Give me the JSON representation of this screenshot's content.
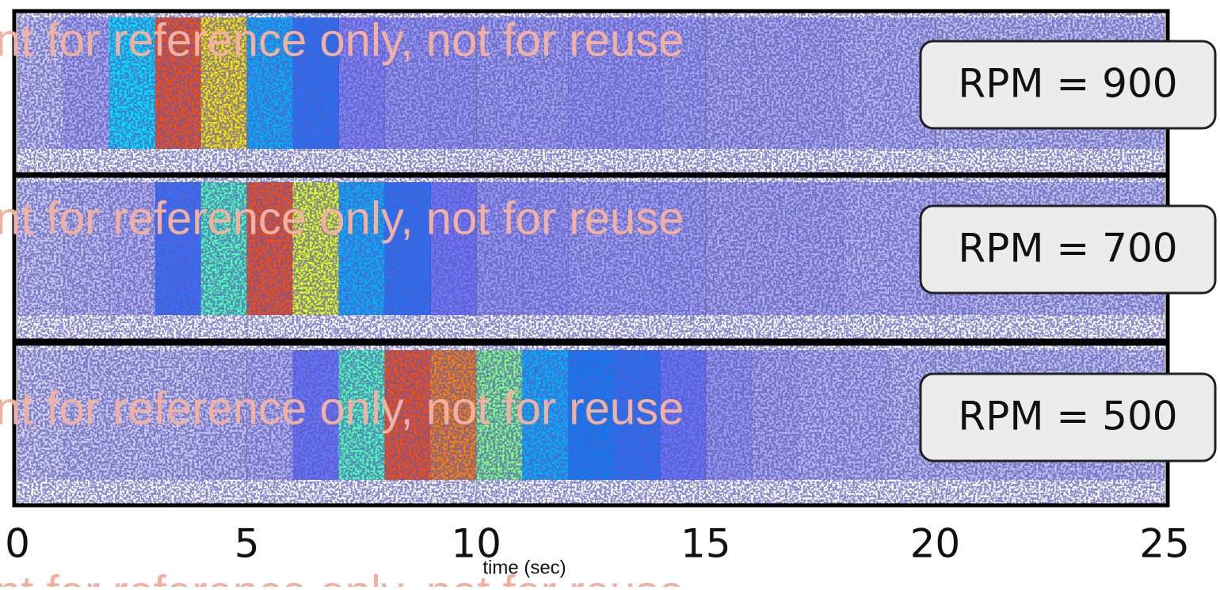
{
  "chart_data": {
    "type": "heatmap",
    "x_label": "time (sec)",
    "xlim": [
      0,
      25
    ],
    "xticks": [
      0,
      5,
      10,
      15,
      20,
      25
    ],
    "grid": true,
    "colormap": "jet",
    "zlim": [
      0,
      1
    ],
    "watermark": "nt for reference only, not for reuse",
    "panels": [
      {
        "label": "RPM = 900",
        "values": [
          0.05,
          0.08,
          0.35,
          0.8,
          0.65,
          0.3,
          0.22,
          0.12,
          0.1,
          0.1,
          0.09,
          0.09,
          0.1,
          0.1,
          0.09,
          0.08,
          0.08,
          0.08,
          0.07,
          0.07,
          0.06,
          0.06,
          0.06,
          0.06,
          0.06
        ]
      },
      {
        "label": "RPM = 700",
        "values": [
          0.05,
          0.06,
          0.07,
          0.2,
          0.45,
          0.8,
          0.6,
          0.3,
          0.22,
          0.14,
          0.1,
          0.1,
          0.09,
          0.09,
          0.09,
          0.08,
          0.08,
          0.08,
          0.07,
          0.07,
          0.07,
          0.06,
          0.06,
          0.06,
          0.06
        ]
      },
      {
        "label": "RPM = 500",
        "values": [
          0.04,
          0.05,
          0.05,
          0.05,
          0.06,
          0.07,
          0.15,
          0.45,
          0.8,
          0.75,
          0.5,
          0.3,
          0.25,
          0.22,
          0.15,
          0.1,
          0.08,
          0.07,
          0.07,
          0.06,
          0.06,
          0.06,
          0.06,
          0.06,
          0.05
        ]
      }
    ]
  }
}
